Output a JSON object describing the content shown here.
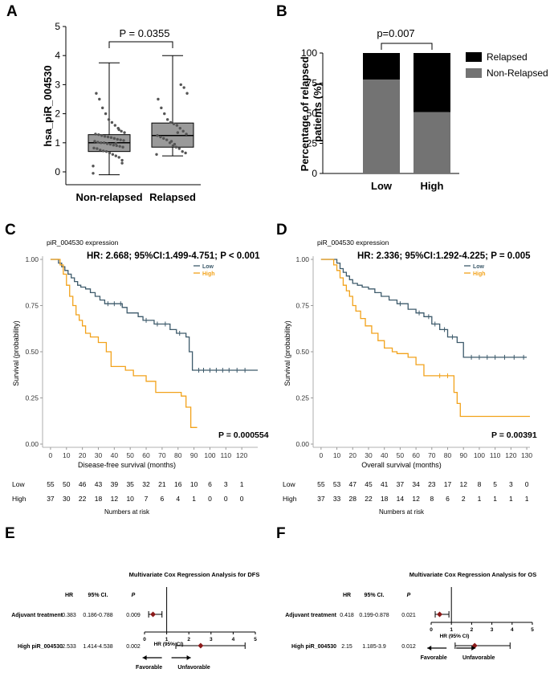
{
  "panel_letters": [
    "A",
    "B",
    "C",
    "D",
    "E",
    "F"
  ],
  "chart_data": [
    {
      "panel": "A",
      "type": "box",
      "ylabel": "hsa_piR_004530",
      "ylim": [
        0,
        5
      ],
      "yticks": [
        0,
        1,
        2,
        3,
        4,
        5
      ],
      "categories": [
        "Non-relapsed",
        "Relapsed"
      ],
      "boxes": [
        {
          "min": -0.1,
          "q1": 0.7,
          "median": 1.0,
          "q3": 1.28,
          "max": 3.75,
          "points": [
            0.2,
            0.4,
            0.5,
            0.55,
            0.6,
            0.65,
            0.7,
            0.72,
            0.75,
            0.8,
            0.82,
            0.85,
            0.88,
            0.9,
            0.92,
            0.95,
            0.97,
            1.0,
            1.0,
            1.02,
            1.05,
            1.08,
            1.1,
            1.12,
            1.15,
            1.18,
            1.2,
            1.22,
            1.25,
            1.28,
            1.3,
            1.35,
            1.4,
            1.5,
            1.6,
            1.7,
            1.8,
            2.0,
            2.2,
            2.5,
            2.7,
            -0.05,
            0.3,
            1.45,
            0.98
          ]
        },
        {
          "min": 0.55,
          "q1": 0.85,
          "median": 1.25,
          "q3": 1.68,
          "max": 4.0,
          "points": [
            0.6,
            0.65,
            0.7,
            0.8,
            0.85,
            0.9,
            1.0,
            1.1,
            1.15,
            1.2,
            1.25,
            1.3,
            1.4,
            1.5,
            1.6,
            1.65,
            1.7,
            1.8,
            2.0,
            2.2,
            2.5,
            2.7,
            2.9,
            3.0,
            1.35,
            0.95,
            1.05
          ]
        }
      ],
      "pvalue": "P = 0.0355"
    },
    {
      "panel": "B",
      "type": "bar",
      "ylabel": "Percentage of relapsed patients (%)",
      "ylim": [
        0,
        100
      ],
      "yticks": [
        0,
        25,
        50,
        75,
        100
      ],
      "categories": [
        "Low",
        "High"
      ],
      "series": [
        {
          "name": "Non-Relapsed",
          "values": [
            78,
            51
          ],
          "color": "#737373"
        },
        {
          "name": "Relapsed",
          "values": [
            22,
            49
          ],
          "color": "#000000"
        }
      ],
      "legend": [
        "Relapsed",
        "Non-Relapsed"
      ],
      "pvalue": "p=0.007"
    },
    {
      "panel": "C",
      "type": "line",
      "subtitle": "piR_004530 expression",
      "hr_text": "HR:  2.668; 95%CI:1.499-4.751; P < 0.001",
      "ylabel": "Survival (probability)",
      "xlabel": "Disease-free survival (months)",
      "xticks": [
        0,
        10,
        20,
        30,
        40,
        50,
        60,
        70,
        80,
        90,
        100,
        110,
        120
      ],
      "yticks": [
        "0.00",
        "0.25",
        "0.50",
        "0.75",
        "1.00"
      ],
      "xlim": [
        -5,
        130
      ],
      "ylim": [
        0,
        1
      ],
      "legend": [
        "Low",
        "High"
      ],
      "series": [
        {
          "name": "Low",
          "color": "#3d5a6b",
          "x": [
            0,
            5,
            7,
            9,
            11,
            13,
            15,
            17,
            19,
            22,
            25,
            28,
            31,
            34,
            45,
            48,
            55,
            58,
            65,
            75,
            79,
            85,
            87,
            89,
            130
          ],
          "y": [
            1.0,
            0.98,
            0.96,
            0.94,
            0.92,
            0.9,
            0.88,
            0.86,
            0.85,
            0.84,
            0.82,
            0.8,
            0.78,
            0.76,
            0.74,
            0.71,
            0.69,
            0.67,
            0.65,
            0.62,
            0.6,
            0.58,
            0.5,
            0.4,
            0.4
          ],
          "censors": [
            [
              36,
              0.76
            ],
            [
              40,
              0.76
            ],
            [
              44,
              0.76
            ],
            [
              60,
              0.67
            ],
            [
              67,
              0.65
            ],
            [
              72,
              0.65
            ],
            [
              81,
              0.6
            ],
            [
              93,
              0.4
            ],
            [
              96,
              0.4
            ],
            [
              100,
              0.4
            ],
            [
              104,
              0.4
            ],
            [
              108,
              0.4
            ],
            [
              112,
              0.4
            ],
            [
              117,
              0.4
            ],
            [
              122,
              0.4
            ]
          ]
        },
        {
          "name": "High",
          "color": "#f2a21b",
          "x": [
            0,
            6,
            8,
            10,
            12,
            14,
            16,
            18,
            20,
            22,
            25,
            30,
            35,
            38,
            47,
            52,
            60,
            66,
            82,
            85,
            88,
            92
          ],
          "y": [
            1.0,
            0.97,
            0.92,
            0.86,
            0.8,
            0.75,
            0.7,
            0.67,
            0.64,
            0.6,
            0.58,
            0.55,
            0.5,
            0.42,
            0.4,
            0.37,
            0.34,
            0.28,
            0.26,
            0.2,
            0.09,
            0.09
          ],
          "censors": []
        }
      ],
      "pvalue": "P = 0.000554",
      "risk_table": {
        "title": "Numbers at risk",
        "times": [
          0,
          10,
          20,
          30,
          40,
          50,
          60,
          70,
          80,
          90,
          100,
          110,
          120
        ],
        "rows": [
          {
            "label": "Low",
            "values": [
              55,
              50,
              46,
              43,
              39,
              35,
              32,
              21,
              16,
              10,
              6,
              3,
              1
            ]
          },
          {
            "label": "High",
            "values": [
              37,
              30,
              22,
              18,
              12,
              10,
              7,
              6,
              4,
              1,
              0,
              0,
              0
            ]
          }
        ]
      }
    },
    {
      "panel": "D",
      "type": "line",
      "subtitle": "piR_004530 expression",
      "hr_text": "HR:  2.336; 95%CI:1.292-4.225; P = 0.005",
      "ylabel": "Survival (probability)",
      "xlabel": "Overall survival (months)",
      "xticks": [
        0,
        10,
        20,
        30,
        40,
        50,
        60,
        70,
        80,
        90,
        100,
        110,
        120,
        130
      ],
      "yticks": [
        "0.00",
        "0.25",
        "0.50",
        "0.75",
        "1.00"
      ],
      "xlim": [
        -5,
        132
      ],
      "ylim": [
        0,
        1
      ],
      "legend": [
        "Low",
        "High"
      ],
      "series": [
        {
          "name": "Low",
          "color": "#3d5a6b",
          "x": [
            0,
            10,
            12,
            14,
            16,
            18,
            20,
            23,
            26,
            30,
            34,
            38,
            43,
            48,
            55,
            60,
            65,
            70,
            75,
            80,
            86,
            90,
            130
          ],
          "y": [
            1.0,
            0.98,
            0.95,
            0.93,
            0.91,
            0.89,
            0.87,
            0.86,
            0.85,
            0.84,
            0.82,
            0.8,
            0.78,
            0.76,
            0.73,
            0.71,
            0.69,
            0.65,
            0.62,
            0.58,
            0.55,
            0.47,
            0.47
          ],
          "censors": [
            [
              50,
              0.76
            ],
            [
              62,
              0.71
            ],
            [
              68,
              0.69
            ],
            [
              72,
              0.65
            ],
            [
              78,
              0.62
            ],
            [
              83,
              0.58
            ],
            [
              95,
              0.47
            ],
            [
              100,
              0.47
            ],
            [
              105,
              0.47
            ],
            [
              110,
              0.47
            ],
            [
              116,
              0.47
            ],
            [
              122,
              0.47
            ],
            [
              128,
              0.47
            ]
          ]
        },
        {
          "name": "High",
          "color": "#f2a21b",
          "x": [
            0,
            8,
            10,
            12,
            14,
            16,
            18,
            20,
            22,
            25,
            28,
            32,
            36,
            40,
            45,
            48,
            55,
            60,
            65,
            84,
            86,
            88,
            132
          ],
          "y": [
            1.0,
            0.97,
            0.94,
            0.9,
            0.86,
            0.83,
            0.8,
            0.75,
            0.72,
            0.68,
            0.64,
            0.6,
            0.56,
            0.52,
            0.5,
            0.49,
            0.47,
            0.43,
            0.37,
            0.28,
            0.22,
            0.15,
            0.15
          ],
          "censors": [
            [
              75,
              0.37
            ],
            [
              80,
              0.37
            ]
          ]
        }
      ],
      "pvalue": "P = 0.00391",
      "risk_table": {
        "title": "Numbers at risk",
        "times": [
          0,
          10,
          20,
          30,
          40,
          50,
          60,
          70,
          80,
          90,
          100,
          110,
          120,
          130
        ],
        "rows": [
          {
            "label": "Low",
            "values": [
              55,
              53,
              47,
              45,
              41,
              37,
              34,
              23,
              17,
              12,
              8,
              5,
              3,
              0
            ]
          },
          {
            "label": "High",
            "values": [
              37,
              33,
              28,
              22,
              18,
              14,
              12,
              8,
              6,
              2,
              1,
              1,
              1,
              1
            ]
          }
        ]
      }
    },
    {
      "panel": "E",
      "type": "forest",
      "title": "Multivariate Cox Regression Analysis for DFS",
      "headers": [
        "HR",
        "95% CI.",
        "P"
      ],
      "xlabel": "HR (95% CI)",
      "xlim": [
        0,
        5
      ],
      "xticks": [
        0,
        1,
        2,
        3,
        4,
        5
      ],
      "reference": 1,
      "rows": [
        {
          "label": "Adjuvant treatment",
          "hr": 0.383,
          "ci_text": "0.186-0.788",
          "p": "0.009",
          "lo": 0.186,
          "hi": 0.788
        },
        {
          "label": "High piR_004530",
          "hr": 2.533,
          "ci_text": "1.414-4.538",
          "p": "0.002",
          "lo": 1.414,
          "hi": 4.538
        }
      ],
      "hr_labels": [
        "0.383",
        "2.533"
      ],
      "arrows": [
        "Favorable",
        "Unfavorable"
      ]
    },
    {
      "panel": "F",
      "type": "forest",
      "title": "Multivariate Cox Regression Analysis for OS",
      "headers": [
        "HR",
        "95% CI.",
        "P"
      ],
      "xlabel": "HR (95% CI)",
      "xlim": [
        0,
        5
      ],
      "xticks": [
        0,
        1,
        2,
        3,
        4,
        5
      ],
      "reference": 1,
      "rows": [
        {
          "label": "Adjuvant treatment",
          "hr": 0.418,
          "ci_text": "0.199-0.878",
          "p": "0.021",
          "lo": 0.199,
          "hi": 0.878
        },
        {
          "label": "High piR_004530",
          "hr": 2.15,
          "ci_text": "1.185-3.9",
          "p": "0.012",
          "lo": 1.185,
          "hi": 3.9
        }
      ],
      "hr_labels": [
        "0.418",
        "2.15"
      ],
      "arrows": [
        "Favorable",
        "Unfavorable"
      ]
    }
  ],
  "colors": {
    "marker": "#8b1a1a",
    "low": "#3d5a6b",
    "high": "#f2a21b"
  }
}
